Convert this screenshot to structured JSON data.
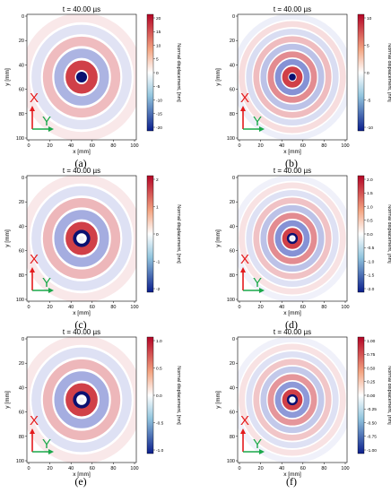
{
  "panels": [
    {
      "id": "a",
      "time": "t = 40.00 µs",
      "caption": "(a)",
      "ticks": [
        "20",
        "15",
        "10",
        "5",
        "0",
        "-5",
        "-10",
        "-15",
        "-20"
      ],
      "cbar_label": "Normal displacement, [nm]",
      "x_axis": "x [mm]",
      "y_axis": "y [mm]",
      "x_ticks": [
        "0",
        "20",
        "40",
        "60",
        "80",
        "100"
      ],
      "y_ticks": [
        "0",
        "20",
        "40",
        "60",
        "80",
        "100"
      ],
      "arrow_x": "X",
      "arrow_y": "Y"
    },
    {
      "id": "b",
      "time": "t = 40.00 µs",
      "caption": "(b)",
      "ticks": [
        "10",
        "5",
        "0",
        "-5",
        "-10"
      ],
      "cbar_label": "Normal displacement, [nm]",
      "x_axis": "x [mm]",
      "y_axis": "y [mm]",
      "x_ticks": [
        "0",
        "20",
        "40",
        "60",
        "80",
        "100"
      ],
      "y_ticks": [
        "0",
        "20",
        "40",
        "60",
        "80",
        "100"
      ],
      "arrow_x": "X",
      "arrow_y": "Y"
    },
    {
      "id": "c",
      "time": "t = 40.00 µs",
      "caption": "(c)",
      "ticks": [
        "2",
        "1",
        "0",
        "-1",
        "-2"
      ],
      "cbar_label": "Normal displacement, [nm]",
      "x_axis": "x [mm]",
      "y_axis": "y [mm]",
      "x_ticks": [
        "0",
        "20",
        "40",
        "60",
        "80",
        "100"
      ],
      "y_ticks": [
        "0",
        "20",
        "40",
        "60",
        "80",
        "100"
      ],
      "arrow_x": "X",
      "arrow_y": "Y"
    },
    {
      "id": "d",
      "time": "t = 40.00 µs",
      "caption": "(d)",
      "ticks": [
        "2.0",
        "1.5",
        "1.0",
        "0.5",
        "0.0",
        "-0.5",
        "-1.0",
        "-1.5",
        "-2.0"
      ],
      "cbar_label": "Normal displacement, [nm]",
      "x_axis": "x [mm]",
      "y_axis": "y [mm]",
      "x_ticks": [
        "0",
        "20",
        "40",
        "60",
        "80",
        "100"
      ],
      "y_ticks": [
        "0",
        "20",
        "40",
        "60",
        "80",
        "100"
      ],
      "arrow_x": "X",
      "arrow_y": "Y"
    },
    {
      "id": "e",
      "time": "t = 40.00 µs",
      "caption": "(e)",
      "ticks": [
        "1.0",
        "0.5",
        "0.0",
        "-0.5",
        "-1.0"
      ],
      "cbar_label": "Normal displacement, [nm]",
      "x_axis": "x [mm]",
      "y_axis": "y [mm]",
      "x_ticks": [
        "0",
        "20",
        "40",
        "60",
        "80",
        "100"
      ],
      "y_ticks": [
        "0",
        "20",
        "40",
        "60",
        "80",
        "100"
      ],
      "arrow_x": "X",
      "arrow_y": "Y"
    },
    {
      "id": "f",
      "time": "t = 40.00 µs",
      "caption": "(f)",
      "ticks": [
        "1.00",
        "0.75",
        "0.50",
        "0.25",
        "0.00",
        "-0.25",
        "-0.50",
        "-0.75",
        "-1.00"
      ],
      "cbar_label": "Normal displacement, [nm]",
      "x_axis": "x [mm]",
      "y_axis": "y [mm]",
      "x_ticks": [
        "0",
        "20",
        "40",
        "60",
        "80",
        "100"
      ],
      "y_ticks": [
        "0",
        "20",
        "40",
        "60",
        "80",
        "100"
      ],
      "arrow_x": "X",
      "arrow_y": "Y"
    }
  ],
  "colors": {
    "positive": "#b40426",
    "negative": "#0a1e8c",
    "neutral": "#ffffff",
    "arrow_x": "#e41a1c",
    "arrow_y": "#1aa84a"
  }
}
